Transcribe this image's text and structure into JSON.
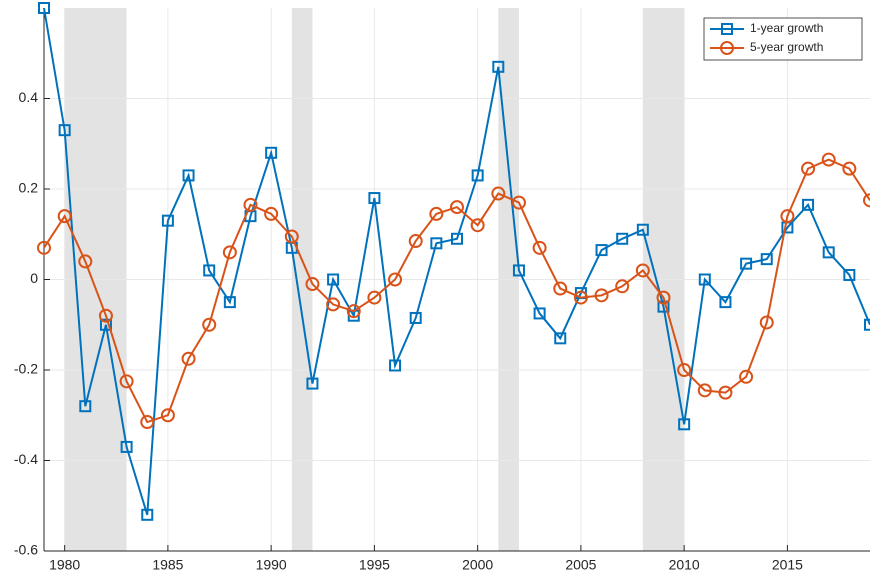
{
  "chart_data": {
    "type": "line",
    "x": [
      1979,
      1980,
      1981,
      1982,
      1983,
      1984,
      1985,
      1986,
      1987,
      1988,
      1989,
      1990,
      1991,
      1992,
      1993,
      1994,
      1995,
      1996,
      1997,
      1998,
      1999,
      2000,
      2001,
      2002,
      2003,
      2004,
      2005,
      2006,
      2007,
      2008,
      2009,
      2010,
      2011,
      2012,
      2013,
      2014,
      2015,
      2016,
      2017,
      2018,
      2019
    ],
    "series": [
      {
        "name": "1-year growth",
        "color": "#0072bd",
        "marker": "square",
        "values": [
          0.6,
          0.33,
          -0.28,
          -0.1,
          -0.37,
          -0.52,
          0.13,
          0.23,
          0.02,
          -0.05,
          0.14,
          0.28,
          0.07,
          -0.23,
          0.0,
          -0.08,
          0.18,
          -0.19,
          -0.085,
          0.08,
          0.09,
          0.23,
          0.47,
          0.02,
          -0.075,
          -0.13,
          -0.03,
          0.065,
          0.09,
          0.11,
          -0.06,
          -0.32,
          0.0,
          -0.05,
          0.035,
          0.045,
          0.115,
          0.165,
          0.06,
          0.01,
          -0.1
        ]
      },
      {
        "name": "5-year growth",
        "color": "#d95319",
        "marker": "circle",
        "values": [
          0.07,
          0.14,
          0.04,
          -0.08,
          -0.225,
          -0.315,
          -0.3,
          -0.175,
          -0.1,
          0.06,
          0.165,
          0.145,
          0.095,
          -0.01,
          -0.055,
          -0.07,
          -0.04,
          0.0,
          0.085,
          0.145,
          0.16,
          0.12,
          0.19,
          0.17,
          0.07,
          -0.02,
          -0.04,
          -0.035,
          -0.015,
          0.02,
          -0.04,
          -0.2,
          -0.245,
          -0.25,
          -0.215,
          -0.095,
          0.14,
          0.245,
          0.265,
          0.245,
          0.175
        ]
      }
    ],
    "shaded_regions": [
      [
        1980,
        1983
      ],
      [
        1991,
        1992
      ],
      [
        2001,
        2002
      ],
      [
        2008,
        2010
      ]
    ],
    "xlim": [
      1979,
      2019
    ],
    "ylim": [
      -0.6,
      0.6
    ],
    "xticks": [
      1980,
      1985,
      1990,
      1995,
      2000,
      2005,
      2010,
      2015
    ],
    "yticks": [
      -0.6,
      -0.4,
      -0.2,
      0,
      0.2,
      0.4
    ],
    "grid": true,
    "legend": "northeast"
  }
}
